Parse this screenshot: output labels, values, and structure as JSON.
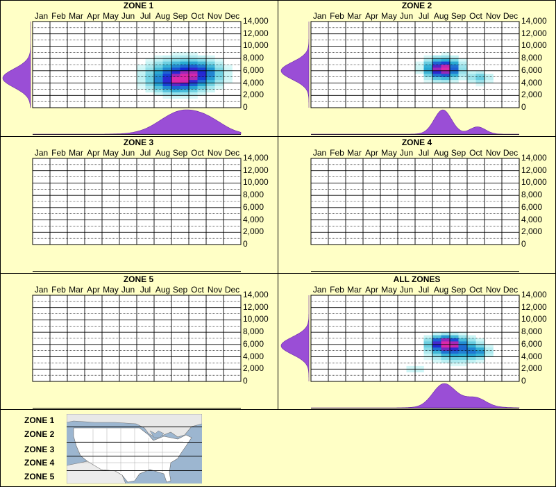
{
  "chart_data": [
    {
      "type": "heatmap",
      "title": "ZONE 1",
      "months": [
        "Jan",
        "Feb",
        "Mar",
        "Apr",
        "May",
        "Jun",
        "Jul",
        "Aug",
        "Sep",
        "Oct",
        "Nov",
        "Dec"
      ],
      "yticks": [
        "14,000",
        "12,000",
        "10,000",
        "8,000",
        "6,000",
        "4,000",
        "2,000",
        "0"
      ],
      "ylim": [
        0,
        14000
      ],
      "blobs": [
        {
          "month": 8.6,
          "elev": 5300,
          "sm": 1.3,
          "se": 1700,
          "w": 1.0
        },
        {
          "month": 8.2,
          "elev": 4000,
          "sm": 0.8,
          "se": 1000,
          "w": 0.6
        },
        {
          "month": 9.6,
          "elev": 5700,
          "sm": 0.8,
          "se": 1200,
          "w": 0.5
        }
      ],
      "month_profile": [
        {
          "m": 8.6,
          "s": 1.25,
          "w": 1.0
        },
        {
          "m": 10.3,
          "s": 0.9,
          "w": 0.35
        }
      ],
      "elev_profile": [
        {
          "e": 4800,
          "s": 1500,
          "w": 1.0
        }
      ],
      "show_profiles": true
    },
    {
      "type": "heatmap",
      "title": "ZONE 2",
      "months": [
        "Jan",
        "Feb",
        "Mar",
        "Apr",
        "May",
        "Jun",
        "Jul",
        "Aug",
        "Sep",
        "Oct",
        "Nov",
        "Dec"
      ],
      "yticks": [
        "14,000",
        "12,000",
        "10,000",
        "8,000",
        "6,000",
        "4,000",
        "2,000",
        "0"
      ],
      "ylim": [
        0,
        14000
      ],
      "blobs": [
        {
          "month": 7.6,
          "elev": 6300,
          "sm": 0.65,
          "se": 1100,
          "w": 1.0
        },
        {
          "month": 9.7,
          "elev": 4900,
          "sm": 0.45,
          "se": 700,
          "w": 0.3
        }
      ],
      "month_profile": [
        {
          "m": 7.6,
          "s": 0.5,
          "w": 1.0
        },
        {
          "m": 9.6,
          "s": 0.45,
          "w": 0.3
        }
      ],
      "elev_profile": [
        {
          "e": 6000,
          "s": 1400,
          "w": 1.0
        }
      ],
      "show_profiles": true
    },
    {
      "type": "heatmap",
      "title": "ZONE 3",
      "months": [
        "Jan",
        "Feb",
        "Mar",
        "Apr",
        "May",
        "Jun",
        "Jul",
        "Aug",
        "Sep",
        "Oct",
        "Nov",
        "Dec"
      ],
      "yticks": [
        "14,000",
        "12,000",
        "10,000",
        "8,000",
        "6,000",
        "4,000",
        "2,000",
        "0"
      ],
      "ylim": [
        0,
        14000
      ],
      "blobs": [],
      "month_profile": [],
      "elev_profile": [],
      "show_profiles": false
    },
    {
      "type": "heatmap",
      "title": "ZONE 4",
      "months": [
        "Jan",
        "Feb",
        "Mar",
        "Apr",
        "May",
        "Jun",
        "Jul",
        "Aug",
        "Sep",
        "Oct",
        "Nov",
        "Dec"
      ],
      "yticks": [
        "14,000",
        "12,000",
        "10,000",
        "8,000",
        "6,000",
        "4,000",
        "2,000",
        "0"
      ],
      "ylim": [
        0,
        14000
      ],
      "blobs": [],
      "month_profile": [],
      "elev_profile": [],
      "show_profiles": false
    },
    {
      "type": "heatmap",
      "title": "ZONE 5",
      "months": [
        "Jan",
        "Feb",
        "Mar",
        "Apr",
        "May",
        "Jun",
        "Jul",
        "Aug",
        "Sep",
        "Oct",
        "Nov",
        "Dec"
      ],
      "yticks": [
        "14,000",
        "12,000",
        "10,000",
        "8,000",
        "6,000",
        "4,000",
        "2,000",
        "0"
      ],
      "ylim": [
        0,
        14000
      ],
      "blobs": [],
      "month_profile": [],
      "elev_profile": [],
      "show_profiles": false
    },
    {
      "type": "heatmap",
      "title": "ALL ZONES",
      "months": [
        "Jan",
        "Feb",
        "Mar",
        "Apr",
        "May",
        "Jun",
        "Jul",
        "Aug",
        "Sep",
        "Oct",
        "Nov",
        "Dec"
      ],
      "yticks": [
        "14,000",
        "12,000",
        "10,000",
        "8,000",
        "6,000",
        "4,000",
        "2,000",
        "0"
      ],
      "ylim": [
        0,
        14000
      ],
      "blobs": [
        {
          "month": 7.7,
          "elev": 6200,
          "sm": 0.55,
          "se": 800,
          "w": 1.25
        },
        {
          "month": 8.4,
          "elev": 5200,
          "sm": 1.0,
          "se": 1300,
          "w": 0.8
        },
        {
          "month": 9.6,
          "elev": 4700,
          "sm": 0.4,
          "se": 600,
          "w": 0.45
        },
        {
          "month": 6.0,
          "elev": 1900,
          "sm": 0.5,
          "se": 600,
          "w": 0.2
        }
      ],
      "month_profile": [
        {
          "m": 7.6,
          "s": 0.6,
          "w": 1.0
        },
        {
          "m": 8.6,
          "s": 1.1,
          "w": 0.45
        },
        {
          "m": 9.6,
          "s": 0.5,
          "w": 0.25
        }
      ],
      "elev_profile": [
        {
          "e": 5800,
          "s": 1400,
          "w": 1.0
        }
      ],
      "show_profiles": true
    }
  ],
  "legend": {
    "zones": [
      "ZONE 1",
      "ZONE 2",
      "ZONE 3",
      "ZONE 4",
      "ZONE 5"
    ]
  },
  "colors": {
    "background": "#ffffc6",
    "profile": "#9a4ed6",
    "grid": "#000000"
  }
}
